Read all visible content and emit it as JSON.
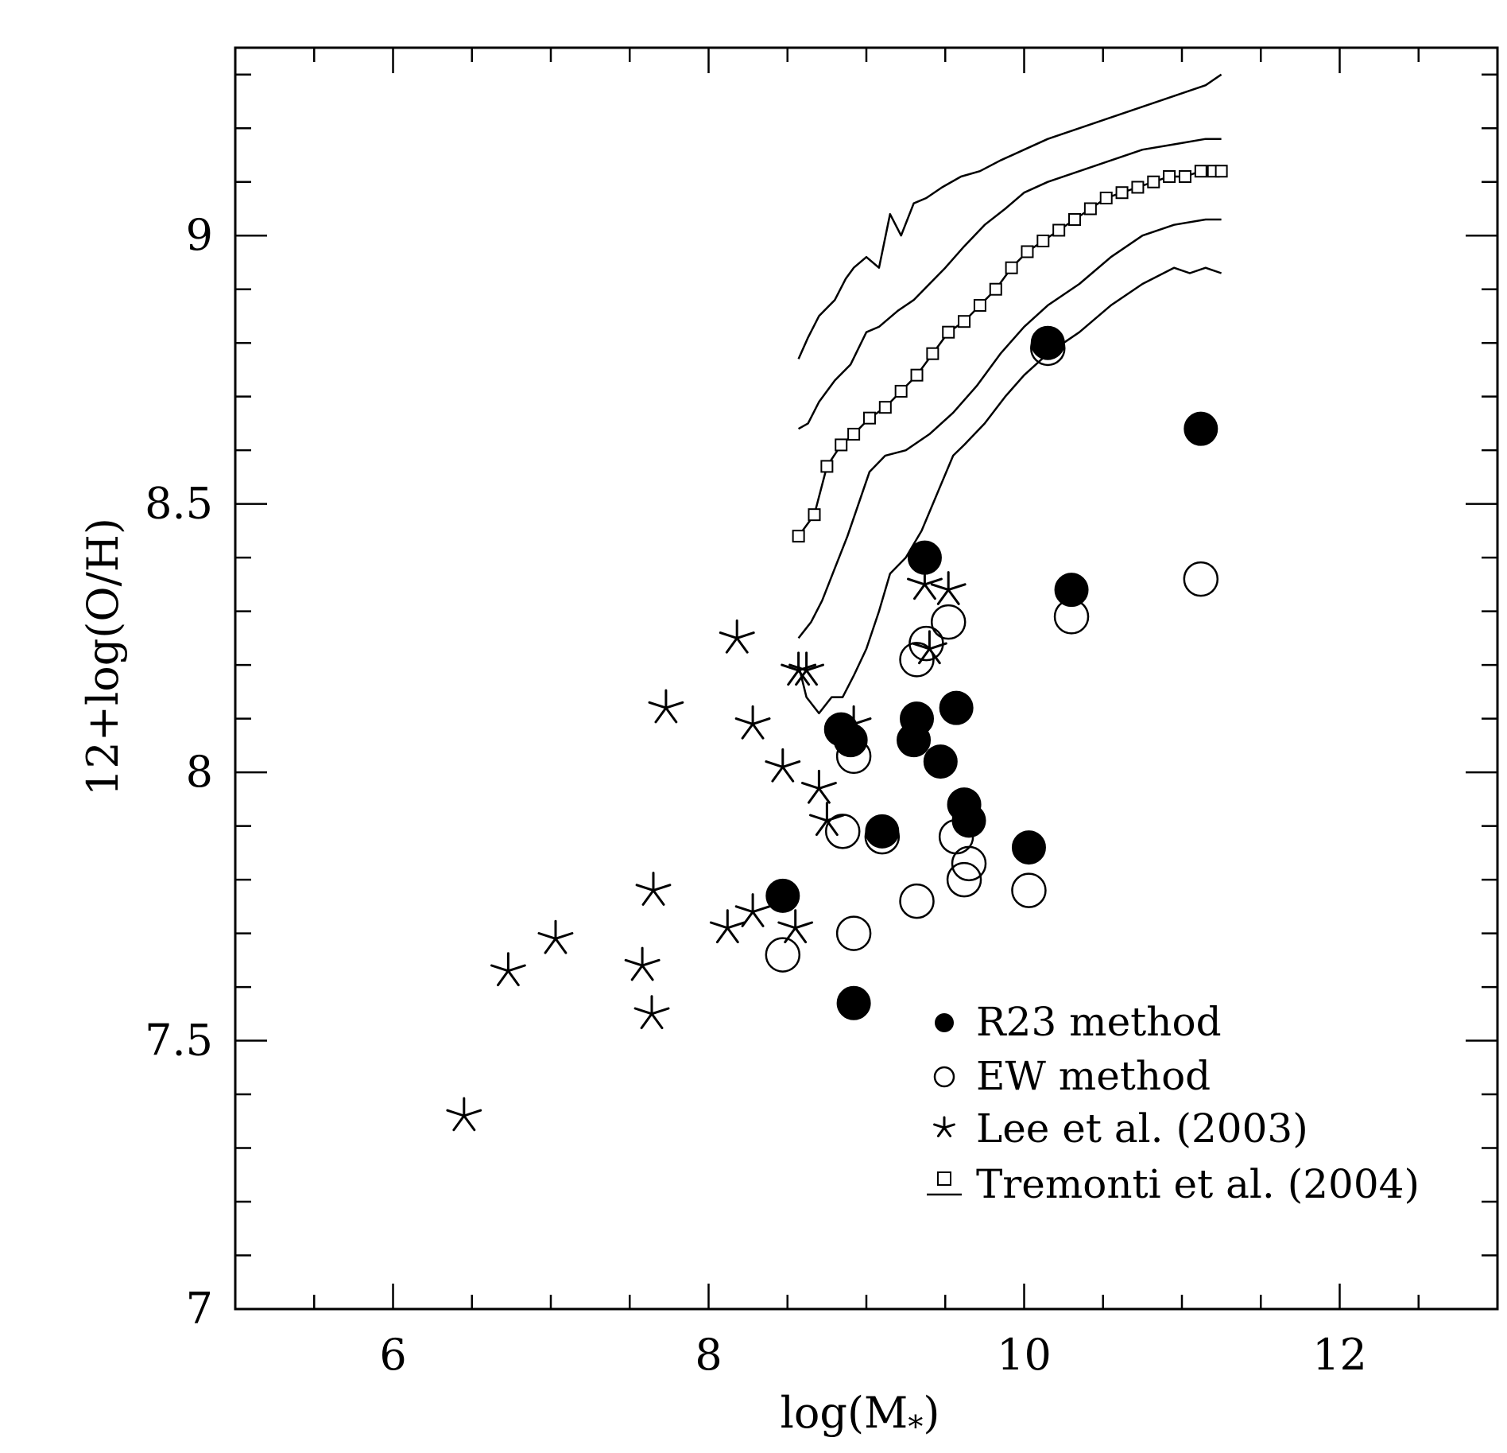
{
  "chart_data": {
    "type": "scatter",
    "xlabel": "log(M",
    "xlabel_sub": "*",
    "xlabel_close": ")",
    "ylabel": "12+log(O/H)",
    "xlim": [
      5,
      13
    ],
    "ylim": [
      7,
      9.35
    ],
    "x_major_ticks": [
      6,
      8,
      10,
      12
    ],
    "x_tick_labels": [
      "6",
      "8",
      "10",
      "12"
    ],
    "y_major_ticks": [
      7,
      7.5,
      8,
      8.5,
      9
    ],
    "y_tick_labels": [
      "7",
      "7.5",
      "8",
      "8.5",
      "9"
    ],
    "x_minor_step": 0.5,
    "y_minor_step": 0.1,
    "grid": false,
    "legend_position": "bottom-right",
    "legend": [
      {
        "marker": "filled-circle",
        "label": "R23 method"
      },
      {
        "marker": "open-circle",
        "label": "EW method"
      },
      {
        "marker": "star",
        "label": "Lee et al. (2003)"
      },
      {
        "marker": "square-line",
        "label": "Tremonti et al. (2004)"
      }
    ],
    "series": [
      {
        "name": "R23 method",
        "marker": "filled-circle",
        "points": [
          [
            10.15,
            8.8
          ],
          [
            11.12,
            8.64
          ],
          [
            9.37,
            8.4
          ],
          [
            10.3,
            8.34
          ],
          [
            9.57,
            8.12
          ],
          [
            8.84,
            8.08
          ],
          [
            9.32,
            8.1
          ],
          [
            8.9,
            8.06
          ],
          [
            9.3,
            8.06
          ],
          [
            9.47,
            8.02
          ],
          [
            9.62,
            7.94
          ],
          [
            9.65,
            7.91
          ],
          [
            9.1,
            7.89
          ],
          [
            10.03,
            7.86
          ],
          [
            8.47,
            7.77
          ],
          [
            8.92,
            7.57
          ]
        ]
      },
      {
        "name": "EW method",
        "marker": "open-circle",
        "points": [
          [
            10.15,
            8.79
          ],
          [
            11.12,
            8.36
          ],
          [
            10.3,
            8.29
          ],
          [
            9.52,
            8.28
          ],
          [
            9.38,
            8.24
          ],
          [
            9.32,
            8.21
          ],
          [
            8.92,
            8.03
          ],
          [
            8.85,
            7.89
          ],
          [
            9.1,
            7.88
          ],
          [
            9.57,
            7.88
          ],
          [
            9.65,
            7.83
          ],
          [
            9.62,
            7.8
          ],
          [
            10.03,
            7.78
          ],
          [
            9.32,
            7.76
          ],
          [
            8.92,
            7.7
          ],
          [
            8.47,
            7.66
          ]
        ]
      },
      {
        "name": "Lee et al. (2003)",
        "marker": "star",
        "points": [
          [
            9.37,
            8.35
          ],
          [
            9.52,
            8.34
          ],
          [
            8.18,
            8.25
          ],
          [
            9.4,
            8.23
          ],
          [
            8.57,
            8.19
          ],
          [
            8.62,
            8.19
          ],
          [
            7.73,
            8.12
          ],
          [
            8.92,
            8.09
          ],
          [
            8.28,
            8.09
          ],
          [
            8.47,
            8.01
          ],
          [
            8.7,
            7.97
          ],
          [
            8.75,
            7.91
          ],
          [
            7.65,
            7.78
          ],
          [
            8.28,
            7.74
          ],
          [
            8.12,
            7.71
          ],
          [
            8.55,
            7.71
          ],
          [
            7.03,
            7.69
          ],
          [
            7.58,
            7.64
          ],
          [
            6.73,
            7.63
          ],
          [
            7.64,
            7.55
          ],
          [
            6.45,
            7.36
          ]
        ]
      }
    ],
    "tremonti_median": {
      "name": "Tremonti et al. (2004)",
      "x": [
        8.57,
        8.67,
        8.75,
        8.84,
        8.92,
        9.02,
        9.12,
        9.22,
        9.32,
        9.42,
        9.52,
        9.62,
        9.72,
        9.82,
        9.92,
        10.02,
        10.12,
        10.22,
        10.32,
        10.42,
        10.52,
        10.62,
        10.72,
        10.82,
        10.92,
        11.02,
        11.12,
        11.2,
        11.25
      ],
      "y": [
        8.44,
        8.48,
        8.57,
        8.61,
        8.63,
        8.66,
        8.68,
        8.71,
        8.74,
        8.78,
        8.82,
        8.84,
        8.87,
        8.9,
        8.94,
        8.97,
        8.99,
        9.01,
        9.03,
        9.05,
        9.07,
        9.08,
        9.09,
        9.1,
        9.11,
        9.11,
        9.12,
        9.12,
        9.12
      ]
    },
    "tremonti_percentile_lines": [
      {
        "x": [
          8.57,
          8.63,
          8.7,
          8.8,
          8.87,
          8.92,
          9.0,
          9.08,
          9.15,
          9.22,
          9.3,
          9.38,
          9.48,
          9.6,
          9.72,
          9.85,
          10.0,
          10.15,
          10.35,
          10.55,
          10.75,
          10.95,
          11.15,
          11.25
        ],
        "y": [
          8.77,
          8.81,
          8.85,
          8.88,
          8.92,
          8.94,
          8.96,
          8.94,
          9.04,
          9.0,
          9.06,
          9.07,
          9.09,
          9.11,
          9.12,
          9.14,
          9.16,
          9.18,
          9.2,
          9.22,
          9.24,
          9.26,
          9.28,
          9.3
        ]
      },
      {
        "x": [
          8.57,
          8.63,
          8.7,
          8.8,
          8.9,
          9.0,
          9.08,
          9.2,
          9.3,
          9.4,
          9.5,
          9.62,
          9.75,
          9.88,
          10.0,
          10.15,
          10.35,
          10.55,
          10.75,
          10.95,
          11.15,
          11.25
        ],
        "y": [
          8.64,
          8.65,
          8.69,
          8.73,
          8.76,
          8.82,
          8.83,
          8.86,
          8.88,
          8.91,
          8.94,
          8.98,
          9.02,
          9.05,
          9.08,
          9.1,
          9.12,
          9.14,
          9.16,
          9.17,
          9.18,
          9.18
        ]
      },
      {
        "x": [
          8.57,
          8.65,
          8.72,
          8.8,
          8.88,
          8.95,
          9.02,
          9.12,
          9.25,
          9.4,
          9.55,
          9.7,
          9.85,
          10.0,
          10.15,
          10.35,
          10.55,
          10.75,
          10.95,
          11.15,
          11.25
        ],
        "y": [
          8.25,
          8.28,
          8.32,
          8.38,
          8.44,
          8.5,
          8.56,
          8.59,
          8.6,
          8.63,
          8.67,
          8.72,
          8.78,
          8.83,
          8.87,
          8.91,
          8.96,
          9.0,
          9.02,
          9.03,
          9.03
        ]
      },
      {
        "x": [
          8.57,
          8.62,
          8.7,
          8.78,
          8.85,
          8.92,
          9.0,
          9.08,
          9.15,
          9.25,
          9.35,
          9.45,
          9.55,
          9.62,
          9.75,
          9.88,
          10.0,
          10.15,
          10.35,
          10.55,
          10.75,
          10.95,
          11.05,
          11.15,
          11.25
        ],
        "y": [
          8.2,
          8.14,
          8.11,
          8.14,
          8.14,
          8.18,
          8.23,
          8.3,
          8.37,
          8.4,
          8.45,
          8.52,
          8.59,
          8.61,
          8.65,
          8.7,
          8.74,
          8.78,
          8.82,
          8.87,
          8.91,
          8.94,
          8.93,
          8.94,
          8.93
        ]
      }
    ]
  }
}
